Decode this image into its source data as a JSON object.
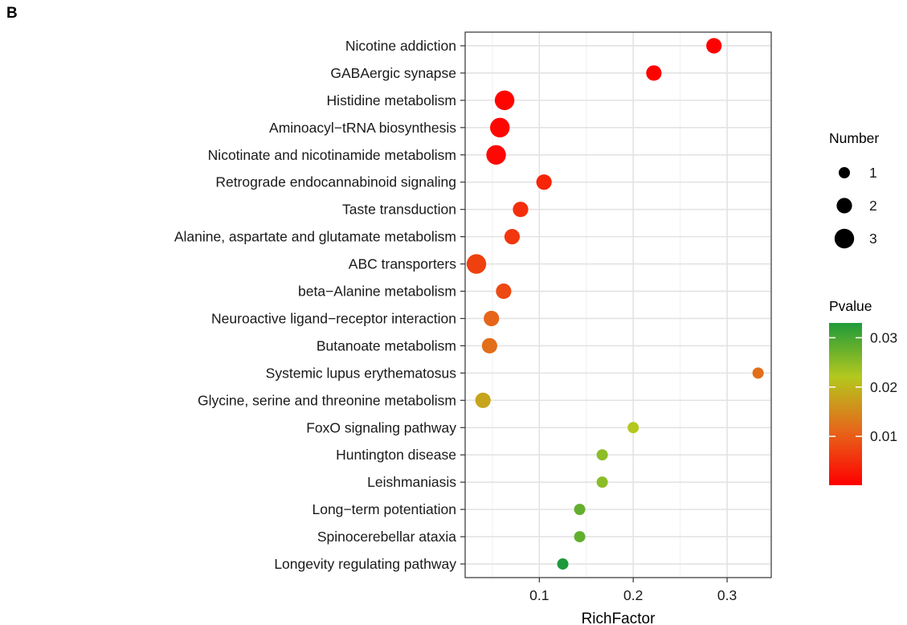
{
  "panel_label": "B",
  "chart_data": {
    "type": "scatter",
    "xlabel": "RichFactor",
    "ylabel": "",
    "xlim": [
      0.021,
      0.347
    ],
    "xticks": [
      0.1,
      0.2,
      0.3
    ],
    "xtick_labels": [
      "0.1",
      "0.2",
      "0.3"
    ],
    "grid": true,
    "categories": [
      "Nicotine addiction",
      "GABAergic synapse",
      "Histidine metabolism",
      "Aminoacyl−tRNA biosynthesis",
      "Nicotinate and nicotinamide metabolism",
      "Retrograde endocannabinoid signaling",
      "Taste transduction",
      "Alanine, aspartate and glutamate metabolism",
      "ABC transporters",
      "beta−Alanine metabolism",
      "Neuroactive ligand−receptor interaction",
      "Butanoate metabolism",
      "Systemic lupus erythematosus",
      "Glycine, serine and threonine metabolism",
      "FoxO signaling pathway",
      "Huntington disease",
      "Leishmaniasis",
      "Long−term potentiation",
      "Spinocerebellar ataxia",
      "Longevity regulating pathway"
    ],
    "points": [
      {
        "pathway": "Nicotine addiction",
        "richfactor": 0.286,
        "number": 2,
        "pvalue": 0.0001
      },
      {
        "pathway": "GABAergic synapse",
        "richfactor": 0.222,
        "number": 2,
        "pvalue": 0.0003
      },
      {
        "pathway": "Histidine metabolism",
        "richfactor": 0.063,
        "number": 3,
        "pvalue": 0.0006
      },
      {
        "pathway": "Aminoacyl−tRNA biosynthesis",
        "richfactor": 0.058,
        "number": 3,
        "pvalue": 0.0008
      },
      {
        "pathway": "Nicotinate and nicotinamide metabolism",
        "richfactor": 0.054,
        "number": 3,
        "pvalue": 0.001
      },
      {
        "pathway": "Retrograde endocannabinoid signaling",
        "richfactor": 0.105,
        "number": 2,
        "pvalue": 0.004
      },
      {
        "pathway": "Taste transduction",
        "richfactor": 0.08,
        "number": 2,
        "pvalue": 0.005
      },
      {
        "pathway": "Alanine, aspartate and glutamate metabolism",
        "richfactor": 0.071,
        "number": 2,
        "pvalue": 0.006
      },
      {
        "pathway": "ABC transporters",
        "richfactor": 0.033,
        "number": 3,
        "pvalue": 0.007
      },
      {
        "pathway": "beta−Alanine metabolism",
        "richfactor": 0.062,
        "number": 2,
        "pvalue": 0.008
      },
      {
        "pathway": "Neuroactive ligand−receptor interaction",
        "richfactor": 0.049,
        "number": 2,
        "pvalue": 0.011
      },
      {
        "pathway": "Butanoate metabolism",
        "richfactor": 0.047,
        "number": 2,
        "pvalue": 0.012
      },
      {
        "pathway": "Systemic lupus erythematosus",
        "richfactor": 0.333,
        "number": 1,
        "pvalue": 0.012
      },
      {
        "pathway": "Glycine, serine and threonine metabolism",
        "richfactor": 0.04,
        "number": 2,
        "pvalue": 0.018
      },
      {
        "pathway": "FoxO signaling pathway",
        "richfactor": 0.2,
        "number": 1,
        "pvalue": 0.022
      },
      {
        "pathway": "Huntington disease",
        "richfactor": 0.167,
        "number": 1,
        "pvalue": 0.025
      },
      {
        "pathway": "Leishmaniasis",
        "richfactor": 0.167,
        "number": 1,
        "pvalue": 0.025
      },
      {
        "pathway": "Long−term potentiation",
        "richfactor": 0.143,
        "number": 1,
        "pvalue": 0.028
      },
      {
        "pathway": "Spinocerebellar ataxia",
        "richfactor": 0.143,
        "number": 1,
        "pvalue": 0.028
      },
      {
        "pathway": "Longevity regulating pathway",
        "richfactor": 0.125,
        "number": 1,
        "pvalue": 0.033
      }
    ],
    "legend_size": {
      "title": "Number",
      "entries": [
        {
          "label": "1",
          "value": 1
        },
        {
          "label": "2",
          "value": 2
        },
        {
          "label": "3",
          "value": 3
        }
      ]
    },
    "legend_color": {
      "title": "Pvalue",
      "range": [
        0.0001,
        0.033
      ],
      "ticks": [
        {
          "label": "0.01",
          "value": 0.01
        },
        {
          "label": "0.02",
          "value": 0.02
        },
        {
          "label": "0.03",
          "value": 0.03
        }
      ],
      "colors": [
        "#ff0000",
        "#e6661a",
        "#b4c81e",
        "#1f9a3a"
      ]
    }
  }
}
